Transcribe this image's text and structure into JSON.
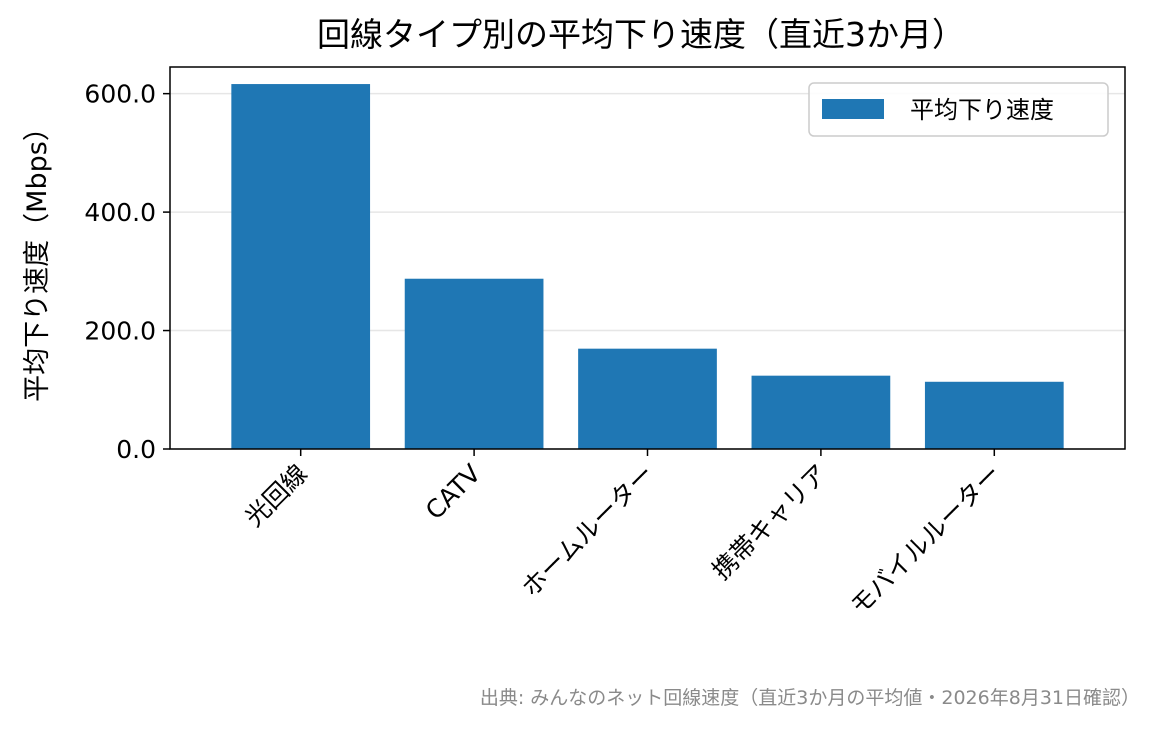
{
  "chart_data": {
    "type": "bar",
    "title": "回線タイプ別の平均下り速度（直近3か月）",
    "xlabel": "",
    "ylabel": "平均下り速度（Mbps）",
    "categories": [
      "光回線",
      "CATV",
      "ホームルーター",
      "携帯キャリア",
      "モバイルルーター"
    ],
    "series": [
      {
        "name": "平均下り速度",
        "values": [
          616.2,
          287.5,
          169.4,
          123.8,
          113.5
        ]
      }
    ],
    "ylim": [
      0,
      645
    ],
    "yticks": [
      0,
      200,
      400,
      600
    ],
    "ytick_labels": [
      "0.0",
      "200.0",
      "400.0",
      "600.0"
    ],
    "grid": "y",
    "legend_position": "top-right",
    "bar_color": "#1f77b4",
    "grid_color": "#e6e6e6",
    "source_note": "出典: みんなのネット回線速度（直近3か月の平均値・2026年8月31日確認）"
  }
}
